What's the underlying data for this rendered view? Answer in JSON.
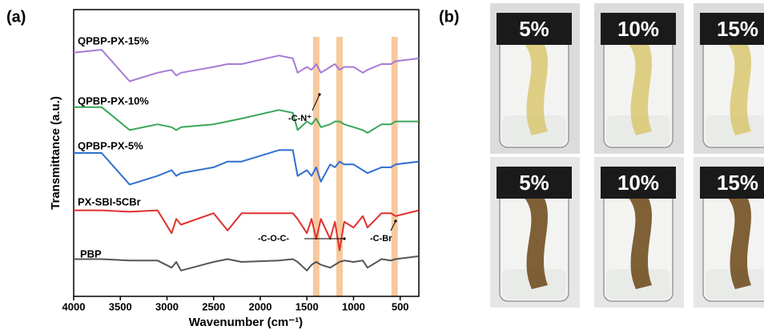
{
  "chart_data": {
    "type": "line",
    "panel_label": "(a)",
    "x_label": "Wavenumber (cm⁻¹)",
    "y_label": "Transmittance (a.u.)",
    "xlim": [
      4000,
      300
    ],
    "ylim": [
      0,
      100
    ],
    "xticks": [
      4000,
      3500,
      3000,
      2500,
      2000,
      1500,
      1000,
      500
    ],
    "highlight_bands": [
      1400,
      1150,
      560
    ],
    "highlight_color": "#f6c08c",
    "x": [
      4000,
      3700,
      3400,
      3100,
      2950,
      2900,
      2850,
      2500,
      2350,
      2200,
      1800,
      1650,
      1600,
      1500,
      1450,
      1400,
      1350,
      1250,
      1200,
      1150,
      1100,
      1000,
      900,
      850,
      700,
      600,
      550,
      300
    ],
    "series": [
      {
        "name": "QPBP-PX-15%",
        "color": "#a77bd6",
        "values": [
          85,
          86,
          75,
          78,
          79,
          77,
          78,
          80,
          81,
          81,
          84,
          83,
          78,
          80,
          79,
          81,
          78,
          80,
          81,
          79,
          80,
          80,
          78,
          79,
          81,
          81,
          82,
          83
        ]
      },
      {
        "name": "QPBP-PX-10%",
        "color": "#3aa65a",
        "values": [
          66,
          66,
          58,
          60,
          59,
          58,
          59,
          60,
          61,
          62,
          65,
          64,
          58,
          61,
          60,
          62,
          59,
          60,
          61,
          61,
          60,
          59,
          58,
          57,
          60,
          60,
          61,
          61
        ]
      },
      {
        "name": "QPBP-PX-5%",
        "color": "#2f6fd0",
        "values": [
          50,
          50,
          39,
          42,
          44,
          42,
          43,
          45,
          47,
          47,
          51,
          51,
          42,
          44,
          42,
          45,
          40,
          46,
          45,
          47,
          46,
          46,
          44,
          43,
          45,
          45,
          46,
          47
        ]
      },
      {
        "name": "PX-SBI-5CBr",
        "color": "#e0302e",
        "values": [
          30,
          30,
          29.5,
          30,
          22,
          27,
          25,
          29,
          23,
          29,
          29,
          29,
          27,
          22,
          27,
          20,
          27,
          20,
          26,
          16,
          26,
          24,
          28,
          24,
          29,
          29,
          28,
          30
        ]
      },
      {
        "name": "PBP",
        "color": "#555555",
        "values": [
          13,
          13,
          12.5,
          12.5,
          10,
          12,
          9,
          12,
          13,
          12,
          12.5,
          13,
          12,
          9,
          11,
          12,
          11,
          10,
          11,
          12,
          12.5,
          12,
          12.5,
          10,
          13,
          12.5,
          13,
          14
        ]
      }
    ],
    "annotations": [
      "-C-N⁺",
      "-C-O-C-",
      "-C-Br"
    ]
  },
  "panel_b": {
    "label": "(b)",
    "rows": [
      [
        "5%",
        "10%",
        "15%"
      ],
      [
        "5%",
        "10%",
        "15%"
      ]
    ]
  }
}
